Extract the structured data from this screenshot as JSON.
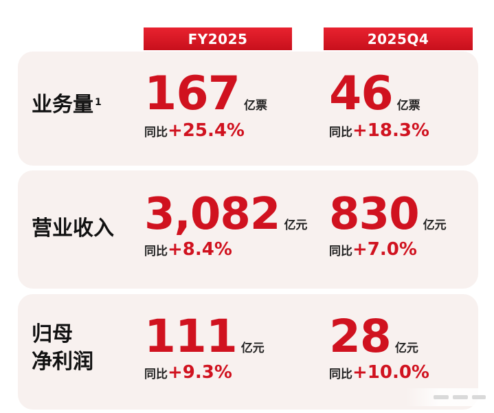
{
  "columns": [
    "FY2025",
    "2025Q4"
  ],
  "rows": [
    {
      "label_lines": [
        "业务量"
      ],
      "footnote": "1",
      "fy": {
        "value": "167",
        "unit": "亿票",
        "yoy_label": "同比",
        "yoy": "+25.4%"
      },
      "q4": {
        "value": "46",
        "unit": "亿票",
        "yoy_label": "同比",
        "yoy": "+18.3%"
      }
    },
    {
      "label_lines": [
        "营业收入"
      ],
      "fy": {
        "value": "3,082",
        "unit": "亿元",
        "yoy_label": "同比",
        "yoy": "+8.4%"
      },
      "q4": {
        "value": "830",
        "unit": "亿元",
        "yoy_label": "同比",
        "yoy": "+7.0%"
      }
    },
    {
      "label_lines": [
        "归母",
        "净利润"
      ],
      "fy": {
        "value": "111",
        "unit": "亿元",
        "yoy_label": "同比",
        "yoy": "+9.3%"
      },
      "q4": {
        "value": "28",
        "unit": "亿元",
        "yoy_label": "同比",
        "yoy": "+10.0%"
      }
    }
  ],
  "colors": {
    "accent": "#d0121f",
    "panel": "#f8f1ef",
    "header": "#d41623"
  }
}
